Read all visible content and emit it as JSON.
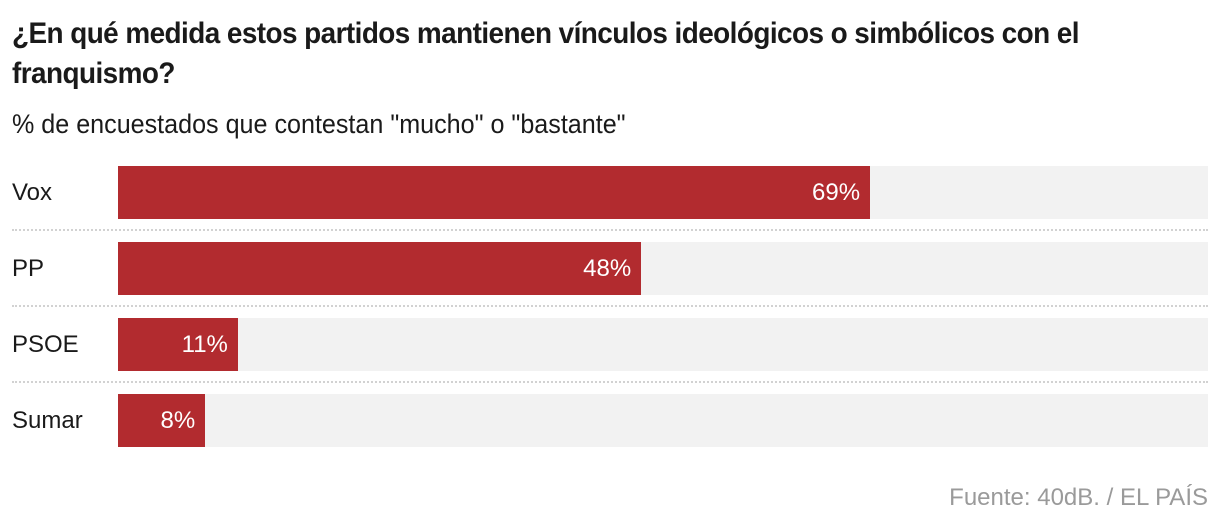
{
  "header": {
    "title": "¿En qué medida estos partidos mantienen vínculos ideológicos o simbólicos con el franquismo?",
    "subtitle": "% de encuestados que contestan \"mucho\" o \"bastante\""
  },
  "rows": [
    {
      "label": "Vox",
      "value": 69,
      "value_label": "69%"
    },
    {
      "label": "PP",
      "value": 48,
      "value_label": "48%"
    },
    {
      "label": "PSOE",
      "value": 11,
      "value_label": "11%"
    },
    {
      "label": "Sumar",
      "value": 8,
      "value_label": "8%"
    }
  ],
  "colors": {
    "bar": "#b22b2f",
    "track": "#f2f2f2",
    "source_text": "#9a9a9a"
  },
  "footer": {
    "source": "Fuente: 40dB. / EL PAÍS"
  },
  "chart_data": {
    "type": "bar",
    "orientation": "horizontal",
    "title": "¿En qué medida estos partidos mantienen vínculos ideológicos o simbólicos con el franquismo?",
    "subtitle": "% de encuestados que contestan \"mucho\" o \"bastante\"",
    "categories": [
      "Vox",
      "PP",
      "PSOE",
      "Sumar"
    ],
    "values": [
      69,
      48,
      11,
      8
    ],
    "value_labels": [
      "69%",
      "48%",
      "11%",
      "8%"
    ],
    "xlabel": "",
    "ylabel": "",
    "xlim": [
      0,
      100
    ],
    "grid": false,
    "legend": null,
    "source": "Fuente: 40dB. / EL PAÍS"
  }
}
